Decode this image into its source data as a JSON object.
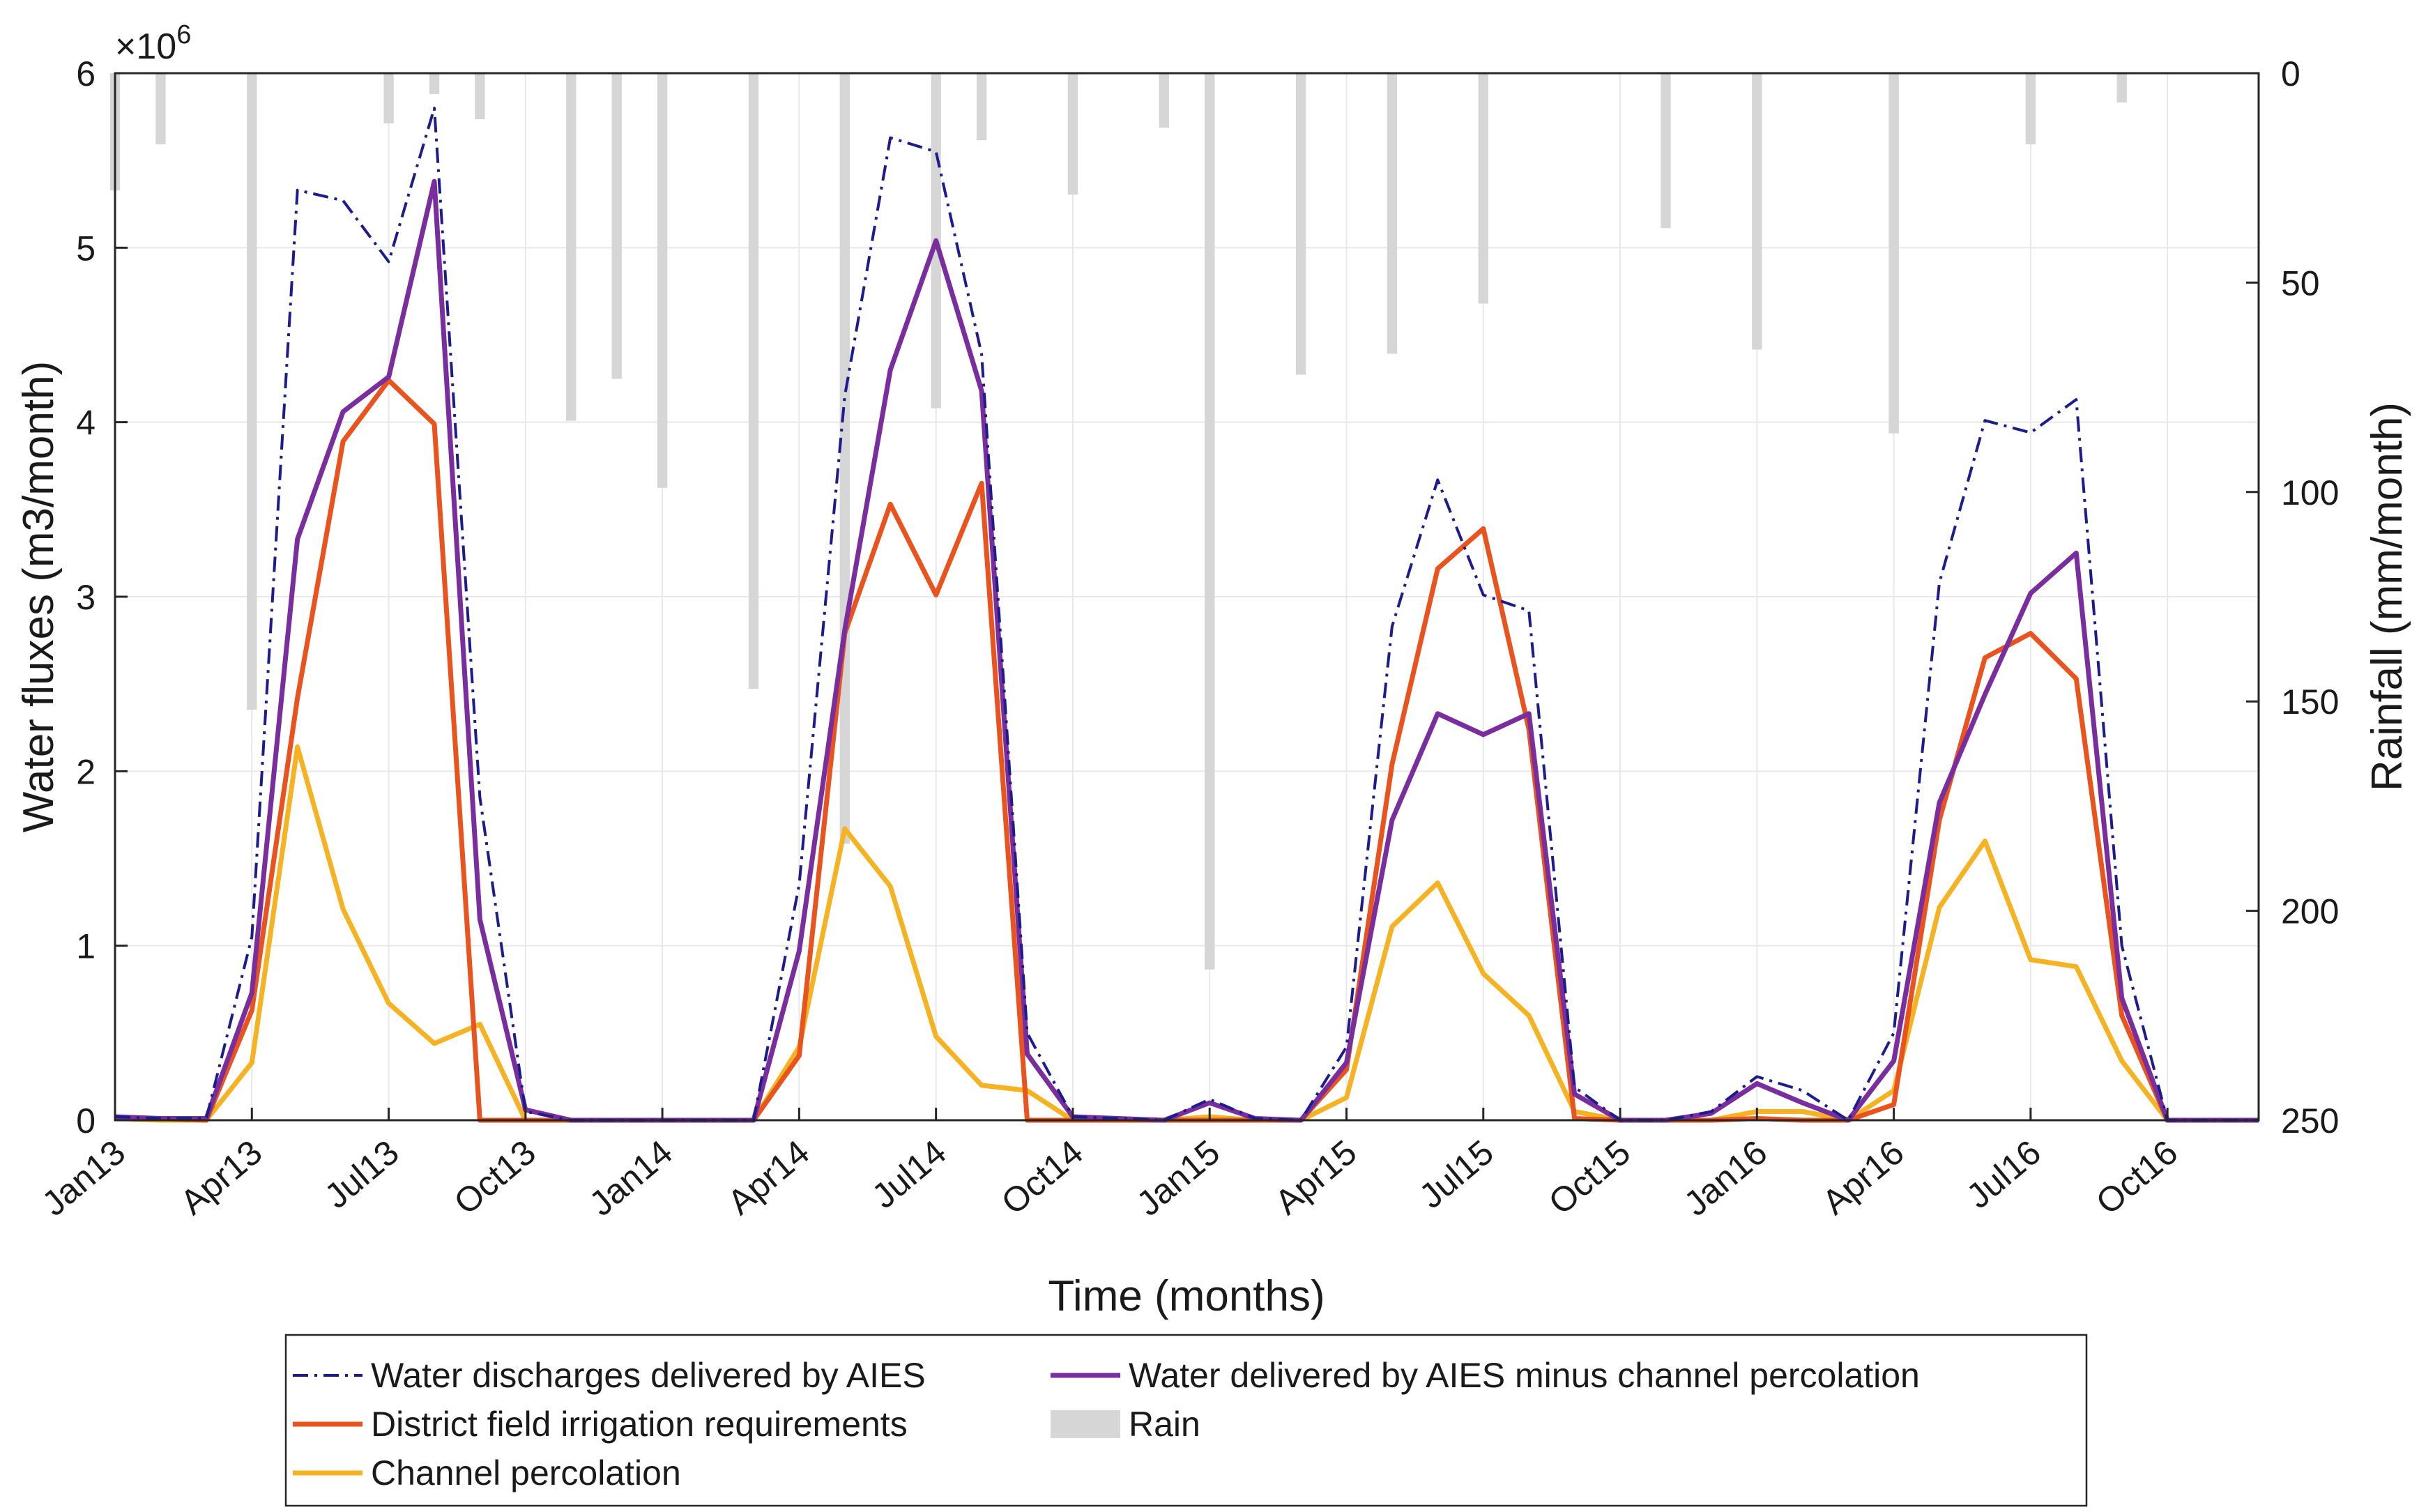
{
  "chart_data": {
    "type": "line",
    "categories": [
      "Jan13",
      "Feb13",
      "Mar13",
      "Apr13",
      "May13",
      "Jun13",
      "Jul13",
      "Aug13",
      "Sep13",
      "Oct13",
      "Nov13",
      "Dec13",
      "Jan14",
      "Feb14",
      "Mar14",
      "Apr14",
      "May14",
      "Jun14",
      "Jul14",
      "Aug14",
      "Sep14",
      "Oct14",
      "Nov14",
      "Dec14",
      "Jan15",
      "Feb15",
      "Mar15",
      "Apr15",
      "May15",
      "Jun15",
      "Jul15",
      "Aug15",
      "Sep15",
      "Oct15",
      "Nov15",
      "Dec15",
      "Jan16",
      "Feb16",
      "Mar16",
      "Apr16",
      "May16",
      "Jun16",
      "Jul16",
      "Aug16",
      "Sep16",
      "Oct16",
      "Nov16",
      "Dec16"
    ],
    "x_tick_labels": [
      "Jan13",
      "Apr13",
      "Jul13",
      "Oct13",
      "Jan14",
      "Apr14",
      "Jul14",
      "Oct14",
      "Jan15",
      "Apr15",
      "Jul15",
      "Oct15",
      "Jan16",
      "Apr16",
      "Jul16",
      "Oct16"
    ],
    "xlabel": "Time (months)",
    "ylabel": "Water fluxes (m3/month)",
    "y2label": "Rainfall (mm/month)",
    "ylim": [
      0,
      6000000
    ],
    "y2lim": [
      0,
      250
    ],
    "y2_reversed": true,
    "y_ticks": [
      0,
      1,
      2,
      3,
      4,
      5,
      6
    ],
    "y_multiplier": "×10",
    "y_multiplier_exp": "6",
    "y2_ticks": [
      0,
      50,
      100,
      150,
      200,
      250
    ],
    "series": [
      {
        "name": "Water discharges delivered by AIES",
        "color": "#1c1c8c",
        "style": "dashdot",
        "values": [
          0.02,
          0.01,
          0.01,
          1.05,
          5.33,
          5.27,
          4.92,
          5.8,
          1.85,
          0.05,
          0,
          0,
          0,
          0,
          0,
          1.35,
          4.15,
          5.63,
          5.55,
          4.39,
          0.5,
          0.02,
          0.01,
          0,
          0.12,
          0.01,
          0,
          0.42,
          2.83,
          3.67,
          3.01,
          2.92,
          0.19,
          0,
          0,
          0.05,
          0.25,
          0.17,
          0,
          0.5,
          3.08,
          4.01,
          3.94,
          4.13,
          1.0,
          0,
          0,
          0
        ]
      },
      {
        "name": "Water delivered by AIES minus channel percolation",
        "color": "#7a2e9e",
        "style": "solid",
        "values": [
          0.02,
          0.01,
          0.01,
          0.73,
          3.33,
          4.06,
          4.26,
          5.38,
          1.15,
          0.06,
          0,
          0,
          0,
          0,
          0,
          0.97,
          2.81,
          4.3,
          5.04,
          4.18,
          0.38,
          0.02,
          0.01,
          0,
          0.1,
          0.01,
          0,
          0.33,
          1.72,
          2.33,
          2.21,
          2.33,
          0.15,
          0,
          0,
          0.04,
          0.21,
          0.1,
          0,
          0.34,
          1.82,
          2.44,
          3.02,
          3.25,
          0.7,
          0,
          0,
          0
        ]
      },
      {
        "name": "District field irrigation requirements",
        "color": "#e8531e",
        "style": "solid",
        "values": [
          0.01,
          0.01,
          0,
          0.63,
          2.42,
          3.89,
          4.24,
          3.99,
          0,
          0,
          0,
          0,
          0,
          0,
          0,
          0.37,
          2.79,
          3.53,
          3.01,
          3.65,
          0,
          0,
          0,
          0,
          0,
          0,
          0,
          0.29,
          2.04,
          3.16,
          3.39,
          2.24,
          0.01,
          0,
          0,
          0,
          0.01,
          0,
          0,
          0.09,
          1.72,
          2.65,
          2.79,
          2.53,
          0.6,
          0,
          0,
          0
        ]
      },
      {
        "name": "Channel percolation",
        "color": "#f5b324",
        "style": "solid",
        "values": [
          0.01,
          0,
          0,
          0.33,
          2.14,
          1.21,
          0.67,
          0.44,
          0.55,
          0,
          0,
          0,
          0,
          0,
          0,
          0.42,
          1.67,
          1.34,
          0.48,
          0.2,
          0.17,
          0,
          0,
          0,
          0.02,
          0,
          0,
          0.13,
          1.11,
          1.36,
          0.84,
          0.6,
          0.05,
          0,
          0,
          0,
          0.05,
          0.05,
          0,
          0.17,
          1.22,
          1.6,
          0.92,
          0.88,
          0.34,
          0,
          0,
          0
        ]
      }
    ],
    "rain": {
      "name": "Rain",
      "color": "#d6d6d6",
      "values": [
        28,
        17,
        0,
        152,
        0,
        0,
        12,
        5,
        11,
        0,
        83,
        73,
        99,
        0,
        147,
        0,
        184,
        0,
        80,
        16,
        0,
        29,
        0,
        13,
        214,
        0,
        72,
        0,
        67,
        0,
        55,
        0,
        0,
        0,
        37,
        0,
        66,
        0,
        0,
        86,
        0,
        0,
        17,
        0,
        7,
        0,
        0,
        0
      ]
    },
    "legend": {
      "placement": "bottom-center",
      "entries": [
        "Water discharges delivered by AIES",
        "Water delivered by AIES minus channel percolation",
        "District field irrigation requirements",
        "Rain",
        "Channel percolation"
      ]
    }
  }
}
